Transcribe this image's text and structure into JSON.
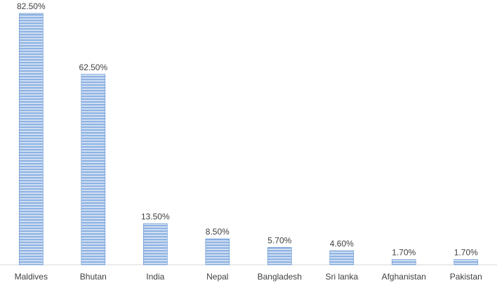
{
  "chart_data": {
    "type": "bar",
    "title": "",
    "xlabel": "",
    "ylabel": "",
    "ylim": [
      0,
      82.5
    ],
    "grid": false,
    "legend": "none",
    "categories": [
      "Maldives",
      "Bhutan",
      "India",
      "Nepal",
      "Bangladesh",
      "Sri lanka",
      "Afghanistan",
      "Pakistan"
    ],
    "values": [
      82.5,
      62.5,
      13.5,
      8.5,
      5.7,
      4.6,
      1.7,
      1.7
    ],
    "value_labels": [
      "82.50%",
      "62.50%",
      "13.50%",
      "8.50%",
      "5.70%",
      "4.60%",
      "1.70%",
      "1.70%"
    ],
    "colors": {
      "bar_fill": "#8fb3e3",
      "bar_stripe": "#ffffff",
      "bar_edge": "#5b8fd0",
      "text": "#404040",
      "axis": "#d9d9d9"
    }
  }
}
